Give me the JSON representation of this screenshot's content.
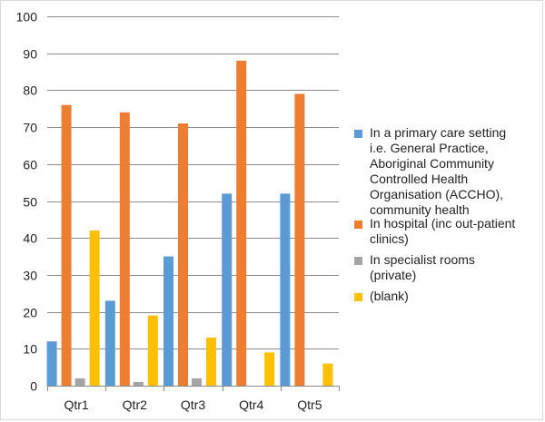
{
  "chart_data": {
    "type": "bar",
    "categories": [
      "Qtr1",
      "Qtr2",
      "Qtr3",
      "Qtr4",
      "Qtr5"
    ],
    "ylim": [
      0,
      100
    ],
    "yticks": [
      0,
      10,
      20,
      30,
      40,
      50,
      60,
      70,
      80,
      90,
      100
    ],
    "grid": true,
    "legend_position": "right",
    "series": [
      {
        "name_lines": [
          "In a primary care setting",
          "i.e. General Practice,",
          "Aboriginal Community",
          "Controlled Health",
          "Organisation (ACCHO),",
          "community health"
        ],
        "color": "#5b9bd5",
        "values": [
          12,
          23,
          35,
          52,
          52
        ]
      },
      {
        "name_lines": [
          "In hospital (inc out-patient",
          "clinics)"
        ],
        "color": "#ed7d31",
        "values": [
          76,
          74,
          71,
          88,
          79
        ]
      },
      {
        "name_lines": [
          "In specialist rooms",
          "(private)"
        ],
        "color": "#a5a5a5",
        "values": [
          2,
          1,
          2,
          0,
          0
        ]
      },
      {
        "name_lines": [
          "(blank)"
        ],
        "color": "#ffc000",
        "values": [
          42,
          19,
          13,
          9,
          6
        ]
      }
    ]
  }
}
